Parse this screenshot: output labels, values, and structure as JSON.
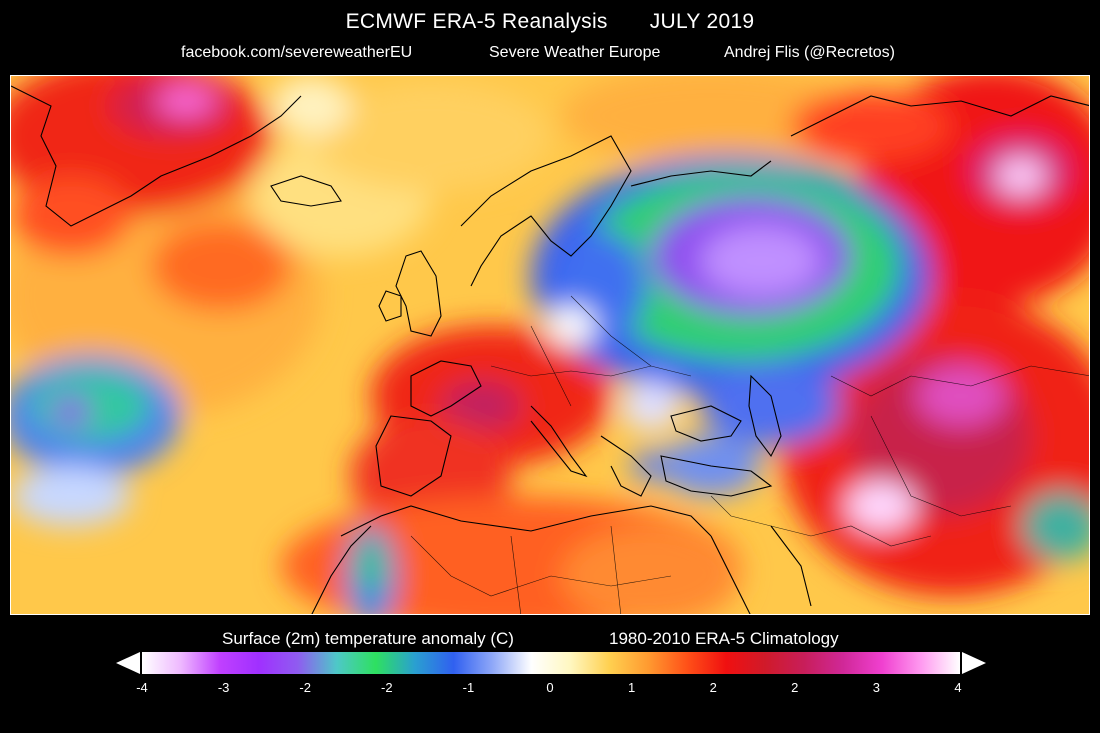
{
  "header": {
    "title_left": "ECMWF ERA-5 Reanalysis",
    "title_right": "JULY 2019",
    "credit_facebook": "facebook.com/severeweatherEU",
    "credit_site": "Severe Weather Europe",
    "credit_author": "Andrej Flis (@Recretos)"
  },
  "map": {
    "variable": "Surface (2m) temperature anomaly (C)",
    "climatology": "1980-2010 ERA-5 Climatology"
  },
  "colorbar": {
    "tick_labels": [
      "-4",
      "-3",
      "-2",
      "-2",
      "-1",
      "0",
      "1",
      "2",
      "2",
      "3",
      "4"
    ],
    "colors": [
      "#ffffff",
      "#eeb8ff",
      "#c040ff",
      "#a030ff",
      "#8f5cf0",
      "#4ec8c8",
      "#2ee060",
      "#2aa0d0",
      "#3060f0",
      "#8fa8f8",
      "#ffffff",
      "#fff7c0",
      "#ffd050",
      "#ff9a30",
      "#ff5018",
      "#f01010",
      "#d01a2a",
      "#c81e5a",
      "#d02898",
      "#f040d0",
      "#ff9af0",
      "#ffffff"
    ]
  }
}
